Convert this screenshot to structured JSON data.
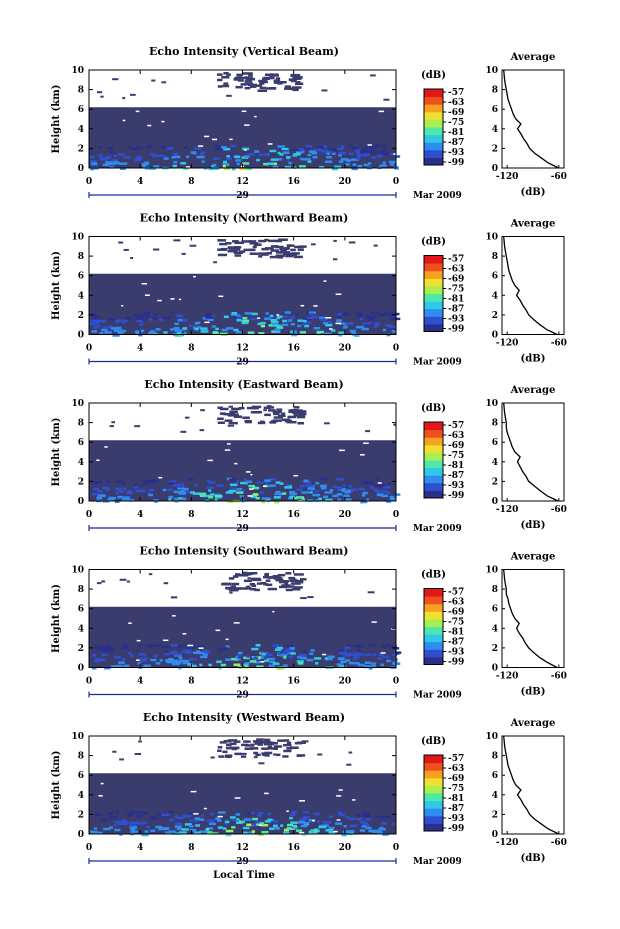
{
  "figure": {
    "xlabel": "Local Time",
    "date_label": "Mar 2009",
    "day_label": "29"
  },
  "colors": {
    "background_fill": "#3a3c6e",
    "colormap": [
      "#2a2f8c",
      "#2f4fd0",
      "#2f8cf0",
      "#30c8e8",
      "#50e8a8",
      "#a8f050",
      "#f0e030",
      "#f8a020",
      "#f05020",
      "#e01818"
    ]
  },
  "chart_data": [
    {
      "type": "heatmap",
      "title": "Echo Intensity (Vertical Beam)",
      "ylabel": "Height (km)",
      "xlim": [
        0,
        24
      ],
      "ylim": [
        0,
        10
      ],
      "x_ticks": [
        "0",
        "4",
        "8",
        "12",
        "16",
        "20",
        "0"
      ],
      "y_ticks": [
        "0",
        "2",
        "4",
        "6",
        "8",
        "10"
      ],
      "colorbar": {
        "label": "(dB)",
        "ticks": [
          "-57",
          "-63",
          "-69",
          "-75",
          "-81",
          "-87",
          "-93",
          "-99"
        ]
      },
      "profile": {
        "title": "Average",
        "xlabel": "(dB)",
        "x_ticks": [
          "-120",
          "-60"
        ],
        "y_ticks": [
          "0",
          "2",
          "4",
          "6",
          "8",
          "10"
        ],
        "xlim": [
          -126,
          -54
        ],
        "ylim": [
          0,
          10
        ],
        "height": [
          0,
          0.5,
          1,
          1.5,
          2,
          2.5,
          3,
          3.5,
          4,
          4.5,
          5,
          5.5,
          6,
          6.5,
          7,
          7.5,
          8,
          8.5,
          9,
          10
        ],
        "value": [
          -60,
          -72,
          -80,
          -88,
          -94,
          -97,
          -101,
          -104,
          -108,
          -104,
          -110,
          -113,
          -115,
          -117,
          -119,
          -120,
          -121,
          -122,
          -123,
          -124
        ]
      }
    },
    {
      "type": "heatmap",
      "title": "Echo Intensity (Northward Beam)",
      "ylabel": "Height (km)",
      "xlim": [
        0,
        24
      ],
      "ylim": [
        0,
        10
      ],
      "x_ticks": [
        "0",
        "4",
        "8",
        "12",
        "16",
        "20",
        "0"
      ],
      "y_ticks": [
        "0",
        "2",
        "4",
        "6",
        "8",
        "10"
      ],
      "colorbar": {
        "label": "(dB)",
        "ticks": [
          "-57",
          "-63",
          "-69",
          "-75",
          "-81",
          "-87",
          "-93",
          "-99"
        ]
      },
      "profile": {
        "title": "Average",
        "xlabel": "(dB)",
        "x_ticks": [
          "-120",
          "-60"
        ],
        "y_ticks": [
          "0",
          "2",
          "4",
          "6",
          "8",
          "10"
        ],
        "xlim": [
          -126,
          -54
        ],
        "ylim": [
          0,
          10
        ],
        "height": [
          0,
          0.5,
          1,
          1.5,
          2,
          2.5,
          3,
          3.5,
          4,
          4.5,
          5,
          5.5,
          6,
          6.5,
          7,
          7.5,
          8,
          8.5,
          9,
          10
        ],
        "value": [
          -62,
          -74,
          -82,
          -89,
          -95,
          -98,
          -102,
          -105,
          -109,
          -106,
          -111,
          -114,
          -116,
          -118,
          -119,
          -120,
          -121,
          -122,
          -123,
          -124
        ]
      }
    },
    {
      "type": "heatmap",
      "title": "Echo Intensity (Eastward Beam)",
      "ylabel": "Height (km)",
      "xlim": [
        0,
        24
      ],
      "ylim": [
        0,
        10
      ],
      "x_ticks": [
        "0",
        "4",
        "8",
        "12",
        "16",
        "20",
        "0"
      ],
      "y_ticks": [
        "0",
        "2",
        "4",
        "6",
        "8",
        "10"
      ],
      "colorbar": {
        "label": "(dB)",
        "ticks": [
          "-57",
          "-63",
          "-69",
          "-75",
          "-81",
          "-87",
          "-93",
          "-99"
        ]
      },
      "profile": {
        "title": "Average",
        "xlabel": "(dB)",
        "x_ticks": [
          "-120",
          "-60"
        ],
        "y_ticks": [
          "0",
          "2",
          "4",
          "6",
          "8",
          "10"
        ],
        "xlim": [
          -126,
          -54
        ],
        "ylim": [
          0,
          10
        ],
        "height": [
          0,
          0.5,
          1,
          1.5,
          2,
          2.5,
          3,
          3.5,
          4,
          4.5,
          5,
          5.5,
          6,
          6.5,
          7,
          7.5,
          8,
          8.5,
          9,
          10
        ],
        "value": [
          -61,
          -73,
          -81,
          -88,
          -95,
          -98,
          -102,
          -105,
          -108,
          -105,
          -111,
          -114,
          -116,
          -118,
          -120,
          -121,
          -121,
          -122,
          -123,
          -124
        ]
      }
    },
    {
      "type": "heatmap",
      "title": "Echo Intensity (Southward Beam)",
      "ylabel": "Height (km)",
      "xlim": [
        0,
        24
      ],
      "ylim": [
        0,
        10
      ],
      "x_ticks": [
        "0",
        "4",
        "8",
        "12",
        "16",
        "20",
        "0"
      ],
      "y_ticks": [
        "0",
        "2",
        "4",
        "6",
        "8",
        "10"
      ],
      "colorbar": {
        "label": "(dB)",
        "ticks": [
          "-57",
          "-63",
          "-69",
          "-75",
          "-81",
          "-87",
          "-93",
          "-99"
        ]
      },
      "profile": {
        "title": "Average",
        "xlabel": "(dB)",
        "x_ticks": [
          "-120",
          "-60"
        ],
        "y_ticks": [
          "0",
          "2",
          "4",
          "6",
          "8",
          "10"
        ],
        "xlim": [
          -126,
          -54
        ],
        "ylim": [
          0,
          10
        ],
        "height": [
          0,
          0.5,
          1,
          1.5,
          2,
          2.5,
          3,
          3.5,
          4,
          4.5,
          5,
          5.5,
          6,
          6.5,
          7,
          7.5,
          8,
          8.5,
          9,
          10
        ],
        "value": [
          -62,
          -73,
          -82,
          -89,
          -95,
          -99,
          -102,
          -106,
          -109,
          -106,
          -111,
          -114,
          -116,
          -118,
          -119,
          -121,
          -121,
          -122,
          -123,
          -124
        ]
      }
    },
    {
      "type": "heatmap",
      "title": "Echo Intensity (Westward Beam)",
      "ylabel": "Height (km)",
      "xlim": [
        0,
        24
      ],
      "ylim": [
        0,
        10
      ],
      "x_ticks": [
        "0",
        "4",
        "8",
        "12",
        "16",
        "20",
        "0"
      ],
      "y_ticks": [
        "0",
        "2",
        "4",
        "6",
        "8",
        "10"
      ],
      "colorbar": {
        "label": "(dB)",
        "ticks": [
          "-57",
          "-63",
          "-69",
          "-75",
          "-81",
          "-87",
          "-93",
          "-99"
        ]
      },
      "profile": {
        "title": "Average",
        "xlabel": "(dB)",
        "x_ticks": [
          "-120",
          "-60"
        ],
        "y_ticks": [
          "0",
          "2",
          "4",
          "6",
          "8",
          "10"
        ],
        "xlim": [
          -126,
          -54
        ],
        "ylim": [
          0,
          10
        ],
        "height": [
          0,
          0.5,
          1,
          1.5,
          2,
          2.5,
          3,
          3.5,
          4,
          4.5,
          5,
          5.5,
          6,
          6.5,
          7,
          7.5,
          8,
          8.5,
          9,
          10
        ],
        "value": [
          -60,
          -72,
          -80,
          -88,
          -94,
          -97,
          -101,
          -104,
          -108,
          -104,
          -110,
          -113,
          -115,
          -117,
          -119,
          -120,
          -121,
          -122,
          -123,
          -124
        ]
      }
    }
  ]
}
